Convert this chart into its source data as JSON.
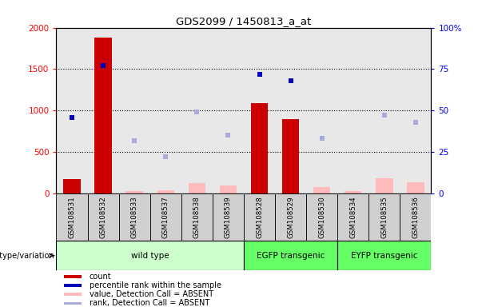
{
  "title": "GDS2099 / 1450813_a_at",
  "samples": [
    "GSM108531",
    "GSM108532",
    "GSM108533",
    "GSM108537",
    "GSM108538",
    "GSM108539",
    "GSM108528",
    "GSM108529",
    "GSM108530",
    "GSM108534",
    "GSM108535",
    "GSM108536"
  ],
  "count_bars": [
    175,
    1880,
    0,
    0,
    0,
    0,
    1090,
    895,
    0,
    0,
    0,
    0
  ],
  "absent_value_bars": [
    null,
    null,
    30,
    40,
    120,
    100,
    null,
    null,
    80,
    30,
    180,
    135
  ],
  "percentile_rank": [
    46,
    77,
    null,
    null,
    null,
    null,
    72,
    68,
    null,
    null,
    null,
    null
  ],
  "rank_absent": [
    null,
    null,
    32,
    22,
    49,
    35,
    null,
    null,
    33,
    null,
    47,
    43
  ],
  "ylim_left": [
    0,
    2000
  ],
  "ylim_right": [
    0,
    100
  ],
  "yticks_left": [
    0,
    500,
    1000,
    1500,
    2000
  ],
  "ytick_labels_left": [
    "0",
    "500",
    "1000",
    "1500",
    "2000"
  ],
  "yticks_right": [
    0,
    25,
    50,
    75,
    100
  ],
  "ytick_labels_right": [
    "0",
    "25",
    "50",
    "75",
    "100%"
  ],
  "bar_color": "#cc0000",
  "absent_bar_color": "#ffbbbb",
  "rank_color": "#0000bb",
  "rank_absent_color": "#aaaadd",
  "grid_lines": [
    500,
    1000,
    1500
  ],
  "wild_type_color": "#ccffcc",
  "egfp_color": "#66ff66",
  "eyfp_color": "#66ff66",
  "sample_box_color": "#d0d0d0",
  "plot_bg": "#e8e8e8"
}
